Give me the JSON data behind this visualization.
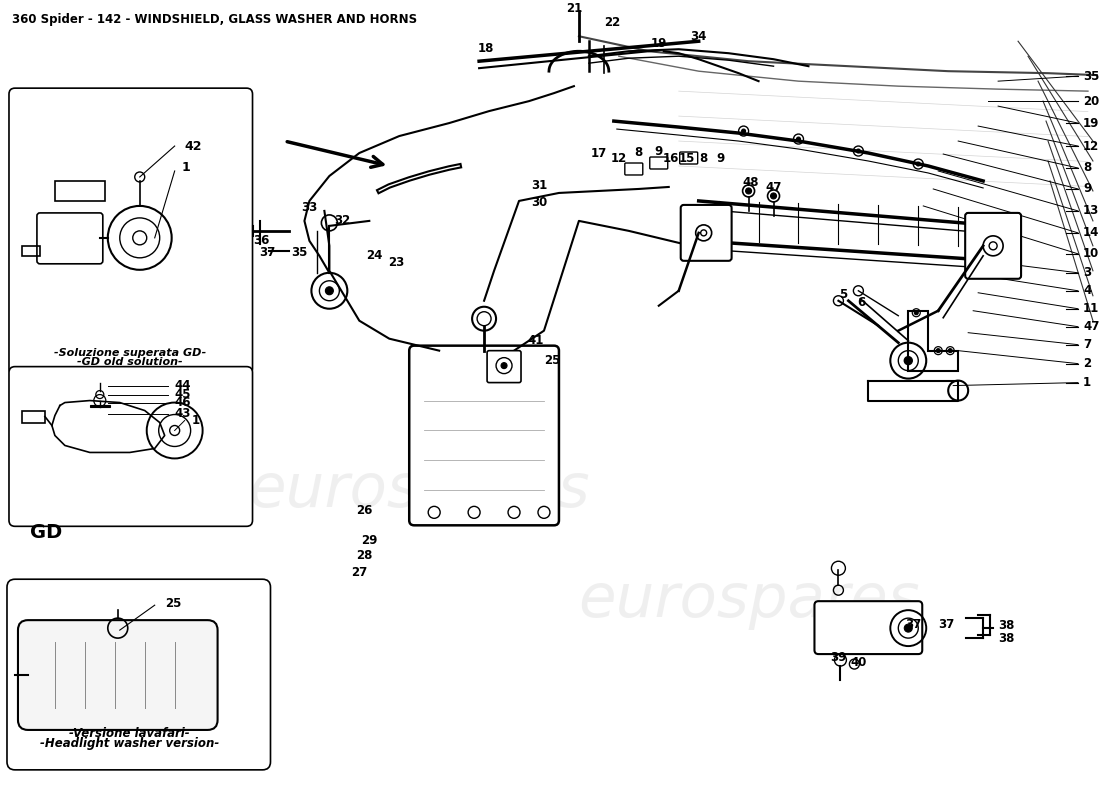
{
  "title": "360 Spider - 142 - WINDSHIELD, GLASS WASHER AND HORNS",
  "title_fontsize": 9,
  "bg_color": "#ffffff",
  "line_color": "#000000",
  "text_color": "#000000",
  "watermark1": "eurospares",
  "watermark2": "eurospares",
  "box1_label_it": "-Soluzione superata GD-",
  "box1_label_en": "-GD old solution-",
  "box2_label": "GD",
  "box3_label_it": "-Versione lavafari-",
  "box3_label_en": "-Headlight washer version-"
}
